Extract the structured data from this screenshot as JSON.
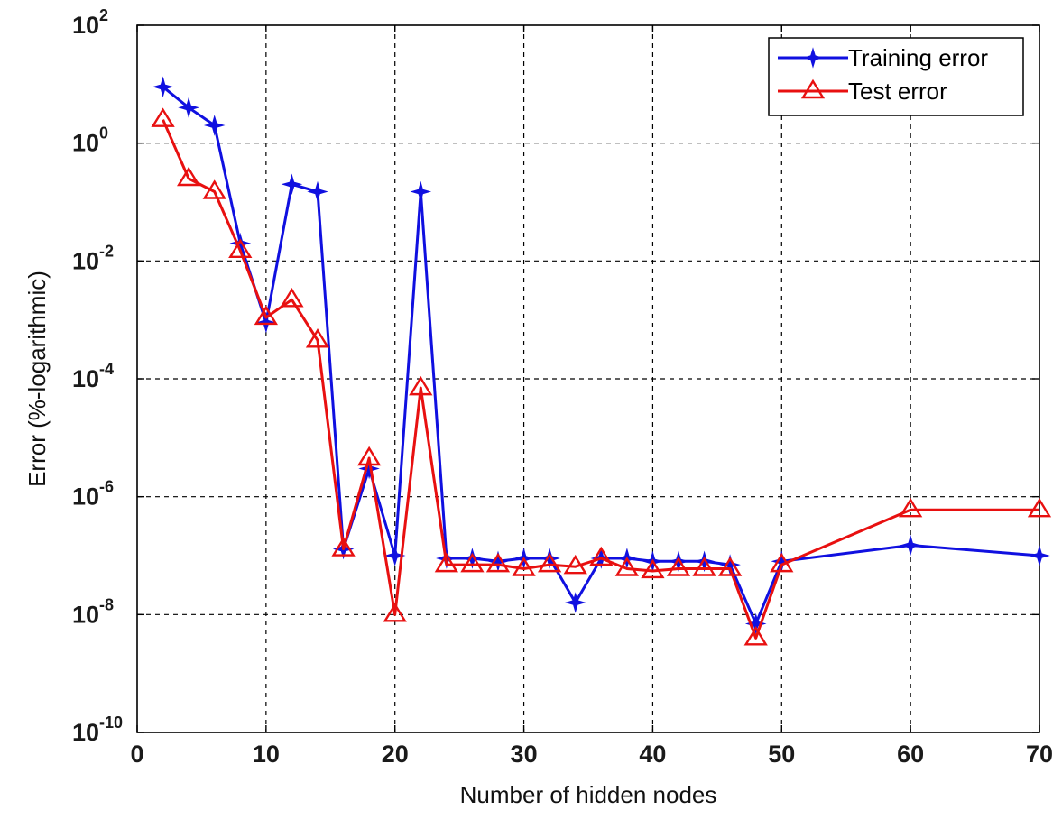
{
  "chart_data": {
    "type": "line",
    "title": "",
    "xlabel": "Number of hidden nodes",
    "ylabel": "Error (%-logarithmic)",
    "x_scale": "linear",
    "y_scale": "log",
    "xlim": [
      0,
      70
    ],
    "ylim": [
      1e-10,
      100
    ],
    "x_ticks": [
      0,
      10,
      20,
      30,
      40,
      50,
      60,
      70
    ],
    "x_tick_labels": [
      "0",
      "10",
      "20",
      "30",
      "40",
      "50",
      "60",
      "70"
    ],
    "y_ticks": [
      1e-10,
      1e-08,
      1e-06,
      0.0001,
      0.01,
      1,
      100
    ],
    "y_tick_labels": [
      {
        "base": "10",
        "exp": "-10"
      },
      {
        "base": "10",
        "exp": "-8"
      },
      {
        "base": "10",
        "exp": "-6"
      },
      {
        "base": "10",
        "exp": "-4"
      },
      {
        "base": "10",
        "exp": "-2"
      },
      {
        "base": "10",
        "exp": "0"
      },
      {
        "base": "10",
        "exp": "2"
      }
    ],
    "grid": true,
    "legend_position": "top-right",
    "series": [
      {
        "name": "Training error",
        "color": "#1010e0",
        "marker": "star",
        "x": [
          2,
          4,
          6,
          8,
          10,
          12,
          14,
          16,
          18,
          20,
          22,
          24,
          26,
          28,
          30,
          32,
          34,
          36,
          38,
          40,
          42,
          44,
          46,
          48,
          50,
          60,
          70
        ],
        "y": [
          9,
          4,
          2,
          0.02,
          0.0009,
          0.2,
          0.15,
          1.3e-07,
          3e-06,
          1e-07,
          0.15,
          9e-08,
          9e-08,
          8e-08,
          9e-08,
          9e-08,
          1.6e-08,
          9e-08,
          9e-08,
          8e-08,
          8e-08,
          8e-08,
          7e-08,
          7e-09,
          8e-08,
          1.5e-07,
          1e-07
        ]
      },
      {
        "name": "Test error",
        "color": "#e81010",
        "marker": "triangle",
        "x": [
          2,
          4,
          6,
          8,
          10,
          12,
          14,
          16,
          18,
          20,
          22,
          24,
          26,
          28,
          30,
          32,
          34,
          36,
          38,
          40,
          42,
          44,
          46,
          48,
          50,
          60,
          70
        ],
        "y": [
          2.5,
          0.25,
          0.15,
          0.015,
          0.0011,
          0.0022,
          0.00045,
          1.3e-07,
          4.5e-06,
          1e-08,
          7e-05,
          7e-08,
          7e-08,
          7e-08,
          6e-08,
          7e-08,
          6.5e-08,
          9e-08,
          6e-08,
          5.5e-08,
          6e-08,
          6e-08,
          6e-08,
          4e-09,
          7e-08,
          6e-07,
          6e-07
        ]
      }
    ]
  }
}
